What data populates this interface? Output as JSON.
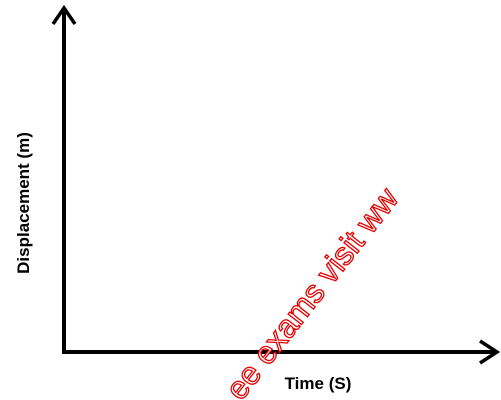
{
  "chart_data": {
    "type": "line",
    "title": "",
    "xlabel": "Time (S)",
    "ylabel": "Displacement (m)",
    "series": [],
    "grid": false,
    "annotations": [
      {
        "text": "ee exams visit ww",
        "kind": "watermark",
        "color": "#e60000"
      }
    ]
  }
}
